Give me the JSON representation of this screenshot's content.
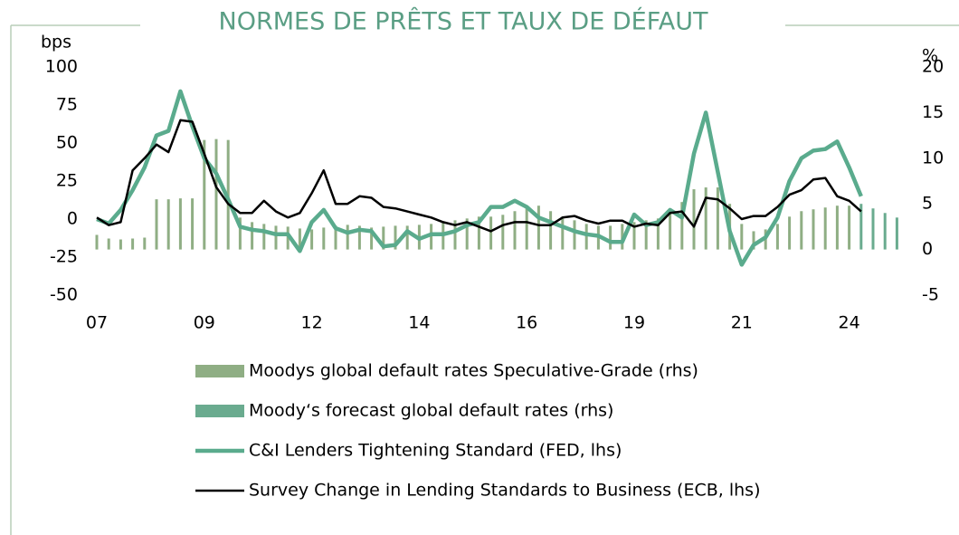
{
  "chart_data": {
    "type": "combo",
    "title": "NORMES DE PRÊTS ET TAUX DE DÉFAUT",
    "y_label": "bps",
    "y2_label": "%",
    "categories": [
      "07",
      null,
      null,
      null,
      null,
      null,
      null,
      null,
      null,
      "09",
      null,
      null,
      null,
      null,
      null,
      null,
      null,
      null,
      "12",
      null,
      null,
      null,
      null,
      null,
      null,
      null,
      null,
      "14",
      null,
      null,
      null,
      null,
      null,
      null,
      null,
      null,
      "16",
      null,
      null,
      null,
      null,
      null,
      null,
      null,
      null,
      "19",
      null,
      null,
      null,
      null,
      null,
      null,
      null,
      null,
      "21",
      null,
      null,
      null,
      null,
      null,
      null,
      null,
      null,
      "24",
      null,
      null,
      null,
      null
    ],
    "ylim": [
      -50,
      100
    ],
    "yticks": [
      -50,
      -25,
      0,
      25,
      50,
      75,
      100
    ],
    "y2lim": [
      -5,
      20
    ],
    "y2ticks": [
      -5,
      0,
      5,
      10,
      15,
      20
    ],
    "series": [
      {
        "name": "Moodys global default rates Speculative-Grade (rhs)",
        "type": "bar",
        "axis": "y2",
        "color": "#8fae84",
        "values": [
          1.6,
          1.2,
          1.1,
          1.2,
          1.3,
          5.5,
          5.5,
          5.6,
          5.6,
          12,
          12.1,
          12,
          3.5,
          3,
          2.8,
          2.6,
          2.5,
          2.3,
          2.2,
          2.4,
          2.6,
          2.7,
          2.6,
          2.4,
          2.5,
          2.6,
          2.6,
          2.7,
          2.8,
          3,
          3.2,
          3.4,
          3.6,
          3.6,
          3.8,
          4.2,
          4.6,
          4.8,
          4.2,
          3.6,
          3.2,
          2.8,
          2.6,
          2.6,
          2.8,
          3,
          3.2,
          3.4,
          4,
          5.2,
          6.6,
          6.8,
          6.8,
          5,
          2.8,
          2,
          2.2,
          2.8,
          3.6,
          4.2,
          4.4,
          4.6,
          4.8,
          4.8,
          null,
          null,
          null,
          null
        ]
      },
      {
        "name": "Moody‘s forecast global default rates (rhs)",
        "type": "bar",
        "axis": "y2",
        "color": "#6aab8f",
        "values": [
          null,
          null,
          null,
          null,
          null,
          null,
          null,
          null,
          null,
          null,
          null,
          null,
          null,
          null,
          null,
          null,
          null,
          null,
          null,
          null,
          null,
          null,
          null,
          null,
          null,
          null,
          null,
          null,
          null,
          null,
          null,
          null,
          null,
          null,
          null,
          null,
          null,
          null,
          null,
          null,
          null,
          null,
          null,
          null,
          null,
          null,
          null,
          null,
          null,
          null,
          null,
          null,
          null,
          null,
          null,
          null,
          null,
          null,
          null,
          null,
          null,
          null,
          null,
          null,
          5,
          4.5,
          4,
          3.5
        ]
      },
      {
        "name": "C&I Lenders Tightening Standard (FED, lhs)",
        "type": "line",
        "color": "#5aab8d",
        "width": 4.5,
        "values": [
          0,
          -3,
          6,
          19,
          34,
          55,
          58,
          84,
          61,
          40,
          30,
          13,
          -5,
          -7,
          -8,
          -10,
          -10,
          -21,
          -2,
          6,
          -6,
          -9,
          -7,
          -8,
          -18,
          -17,
          -8,
          -13,
          -10,
          -10,
          -8,
          -4,
          -2,
          8,
          8,
          12,
          8,
          1,
          -2,
          -5,
          -8,
          -10,
          -11,
          -15,
          -15,
          3,
          -4,
          -2,
          6,
          1,
          43,
          70,
          31,
          -8,
          -30,
          -17,
          -12,
          1,
          25,
          40,
          45,
          46,
          51,
          34,
          15,
          null,
          null,
          null
        ]
      },
      {
        "name": "Survey Change in Lending Standards to Business (ECB, lhs)",
        "type": "line",
        "color": "#000000",
        "width": 2.5,
        "values": [
          1,
          -4,
          -2,
          32,
          40,
          49,
          44,
          65,
          64,
          43,
          21,
          10,
          4,
          4,
          12,
          5,
          1,
          4,
          17,
          32,
          10,
          10,
          15,
          14,
          8,
          7,
          5,
          3,
          1,
          -2,
          -4,
          -2,
          -5,
          -8,
          -4,
          -2,
          -2,
          -4,
          -4,
          1,
          2,
          -1,
          -3,
          -1,
          -1,
          -5,
          -3,
          -4,
          4,
          5,
          -5,
          14,
          13,
          7,
          0,
          2,
          2,
          8,
          16,
          19,
          26,
          27,
          15,
          12,
          5,
          null,
          null,
          null
        ]
      }
    ]
  }
}
